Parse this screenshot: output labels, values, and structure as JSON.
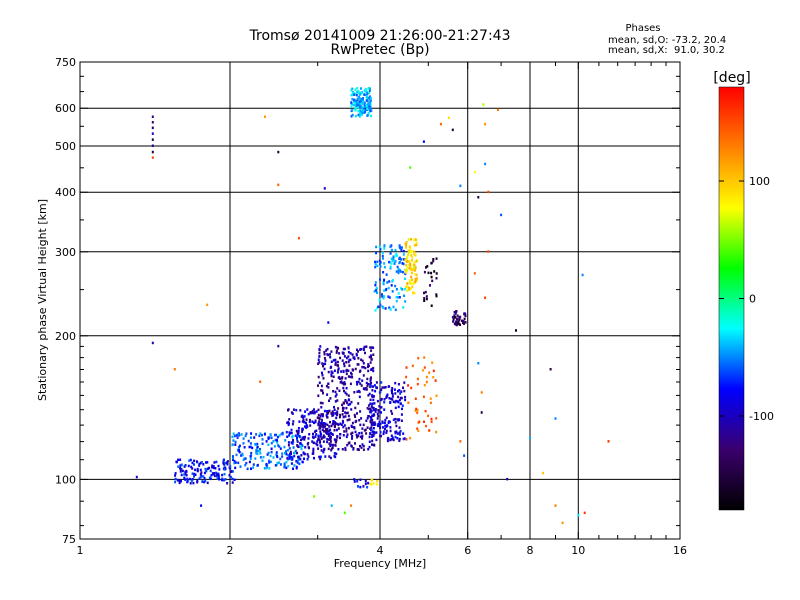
{
  "chart_data": {
    "type": "scatter",
    "title": "Tromsø 20141009 21:26:00-21:27:43",
    "subtitle": "RwPretec (Bp)",
    "xlabel": "Frequency [MHz]",
    "ylabel": "Stationary phase Virtual Height [km]",
    "x_scale": "log2",
    "y_scale": "log",
    "xlim": [
      1,
      16
    ],
    "ylim": [
      75,
      750
    ],
    "x_ticks": [
      {
        "value": 1,
        "label": "1"
      },
      {
        "value": 2,
        "label": "2"
      },
      {
        "value": 4,
        "label": "4"
      },
      {
        "value": 6,
        "label": "6"
      },
      {
        "value": 8,
        "label": "8"
      },
      {
        "value": 10,
        "label": "10"
      },
      {
        "value": 16,
        "label": "16"
      }
    ],
    "x_gridlines": [
      2,
      4,
      6,
      8,
      10
    ],
    "y_ticks": [
      {
        "value": 75,
        "label": "75"
      },
      {
        "value": 100,
        "label": "100"
      },
      {
        "value": 200,
        "label": "200"
      },
      {
        "value": 300,
        "label": "300"
      },
      {
        "value": 400,
        "label": "400"
      },
      {
        "value": 500,
        "label": "500"
      },
      {
        "value": 600,
        "label": "600"
      },
      {
        "value": 750,
        "label": "750"
      }
    ],
    "y_gridlines": [
      100,
      200,
      300,
      400,
      500,
      600
    ],
    "stats": {
      "heading": "Phases",
      "line_o": "mean, sd,O: -73.2, 20.4",
      "line_x": "mean, sd,X:  91.0, 30.2"
    },
    "colorbar": {
      "label": "[deg]",
      "range": [
        -180,
        180
      ],
      "ticks": [
        {
          "value": 100,
          "label": "100"
        },
        {
          "value": 0,
          "label": "0"
        },
        {
          "value": -100,
          "label": "-100"
        }
      ],
      "colors": [
        "#000000",
        "#3a006e",
        "#0000ff",
        "#00ffff",
        "#00ff00",
        "#ffff00",
        "#ff8000",
        "#ff0000"
      ]
    },
    "clusters": [
      {
        "f": [
          1.55,
          2.05
        ],
        "h": [
          98,
          110
        ],
        "phase": -80,
        "n": 150
      },
      {
        "f": [
          2.0,
          2.8
        ],
        "h": [
          105,
          125
        ],
        "phase": -60,
        "n": 200
      },
      {
        "f": [
          2.6,
          3.3
        ],
        "h": [
          110,
          140
        ],
        "phase": -95,
        "n": 200
      },
      {
        "f": [
          3.0,
          3.9
        ],
        "h": [
          115,
          190
        ],
        "phase": -110,
        "n": 420
      },
      {
        "f": [
          3.8,
          4.5
        ],
        "h": [
          120,
          160
        ],
        "phase": -90,
        "n": 180
      },
      {
        "f": [
          3.5,
          3.85
        ],
        "h": [
          575,
          660
        ],
        "phase": -40,
        "n": 160
      },
      {
        "f": [
          3.9,
          4.5
        ],
        "h": [
          225,
          310
        ],
        "phase": -50,
        "n": 130
      },
      {
        "f": [
          4.5,
          4.75
        ],
        "h": [
          245,
          320
        ],
        "phase": 90,
        "n": 90
      },
      {
        "f": [
          4.5,
          5.2
        ],
        "h": [
          120,
          180
        ],
        "phase": 140,
        "n": 45
      },
      {
        "f": [
          4.9,
          5.2
        ],
        "h": [
          230,
          290
        ],
        "phase": -150,
        "n": 25
      },
      {
        "f": [
          5.6,
          5.95
        ],
        "h": [
          210,
          225
        ],
        "phase": -135,
        "n": 40
      },
      {
        "f": [
          3.55,
          3.8
        ],
        "h": [
          96,
          100
        ],
        "phase": -80,
        "n": 12
      },
      {
        "f": [
          3.8,
          4.0
        ],
        "h": [
          97,
          100
        ],
        "phase": 90,
        "n": 8
      }
    ],
    "points": [
      {
        "f": 1.4,
        "h": 575,
        "phase": -120
      },
      {
        "f": 1.4,
        "h": 560,
        "phase": -130
      },
      {
        "f": 1.4,
        "h": 545,
        "phase": -140
      },
      {
        "f": 1.4,
        "h": 530,
        "phase": -100
      },
      {
        "f": 1.4,
        "h": 515,
        "phase": -150
      },
      {
        "f": 1.4,
        "h": 500,
        "phase": -110
      },
      {
        "f": 1.4,
        "h": 485,
        "phase": -160
      },
      {
        "f": 1.4,
        "h": 472,
        "phase": 150
      },
      {
        "f": 1.4,
        "h": 193,
        "phase": -110
      },
      {
        "f": 1.55,
        "h": 170,
        "phase": 130
      },
      {
        "f": 1.3,
        "h": 101,
        "phase": -100
      },
      {
        "f": 1.75,
        "h": 88,
        "phase": -80
      },
      {
        "f": 1.8,
        "h": 232,
        "phase": 120
      },
      {
        "f": 2.35,
        "h": 575,
        "phase": 120
      },
      {
        "f": 2.5,
        "h": 485,
        "phase": -150
      },
      {
        "f": 2.5,
        "h": 414,
        "phase": 140
      },
      {
        "f": 2.5,
        "h": 190,
        "phase": -110
      },
      {
        "f": 2.75,
        "h": 320,
        "phase": 150
      },
      {
        "f": 2.3,
        "h": 160,
        "phase": 140
      },
      {
        "f": 3.1,
        "h": 407,
        "phase": -100
      },
      {
        "f": 3.15,
        "h": 213,
        "phase": -80
      },
      {
        "f": 2.95,
        "h": 92,
        "phase": 50
      },
      {
        "f": 3.2,
        "h": 88,
        "phase": -40
      },
      {
        "f": 3.4,
        "h": 85,
        "phase": 40
      },
      {
        "f": 3.5,
        "h": 88,
        "phase": 130
      },
      {
        "f": 4.6,
        "h": 450,
        "phase": 40
      },
      {
        "f": 4.9,
        "h": 510,
        "phase": -80
      },
      {
        "f": 5.3,
        "h": 555,
        "phase": 140
      },
      {
        "f": 5.5,
        "h": 572,
        "phase": 90
      },
      {
        "f": 5.6,
        "h": 540,
        "phase": -150
      },
      {
        "f": 5.8,
        "h": 412,
        "phase": -50
      },
      {
        "f": 6.2,
        "h": 440,
        "phase": 80
      },
      {
        "f": 6.3,
        "h": 390,
        "phase": -150
      },
      {
        "f": 6.45,
        "h": 610,
        "phase": 60
      },
      {
        "f": 6.5,
        "h": 555,
        "phase": 120
      },
      {
        "f": 6.5,
        "h": 458,
        "phase": -50
      },
      {
        "f": 6.6,
        "h": 400,
        "phase": 150
      },
      {
        "f": 6.9,
        "h": 595,
        "phase": 130
      },
      {
        "f": 7.0,
        "h": 358,
        "phase": -60
      },
      {
        "f": 6.2,
        "h": 270,
        "phase": 140
      },
      {
        "f": 6.5,
        "h": 240,
        "phase": 150
      },
      {
        "f": 6.6,
        "h": 300,
        "phase": 150
      },
      {
        "f": 6.4,
        "h": 152,
        "phase": 130
      },
      {
        "f": 6.3,
        "h": 175,
        "phase": -50
      },
      {
        "f": 6.4,
        "h": 138,
        "phase": -150
      },
      {
        "f": 5.8,
        "h": 120,
        "phase": 140
      },
      {
        "f": 5.9,
        "h": 112,
        "phase": -60
      },
      {
        "f": 7.2,
        "h": 100,
        "phase": -100
      },
      {
        "f": 7.5,
        "h": 205,
        "phase": -160
      },
      {
        "f": 8.0,
        "h": 122,
        "phase": -40
      },
      {
        "f": 8.5,
        "h": 103,
        "phase": 100
      },
      {
        "f": 8.8,
        "h": 170,
        "phase": -140
      },
      {
        "f": 9.0,
        "h": 134,
        "phase": -50
      },
      {
        "f": 9.0,
        "h": 88,
        "phase": 130
      },
      {
        "f": 9.3,
        "h": 81,
        "phase": 120
      },
      {
        "f": 10.0,
        "h": 84,
        "phase": -30
      },
      {
        "f": 10.2,
        "h": 268,
        "phase": -50
      },
      {
        "f": 10.3,
        "h": 85,
        "phase": 160
      },
      {
        "f": 11.5,
        "h": 120,
        "phase": 160
      }
    ]
  }
}
